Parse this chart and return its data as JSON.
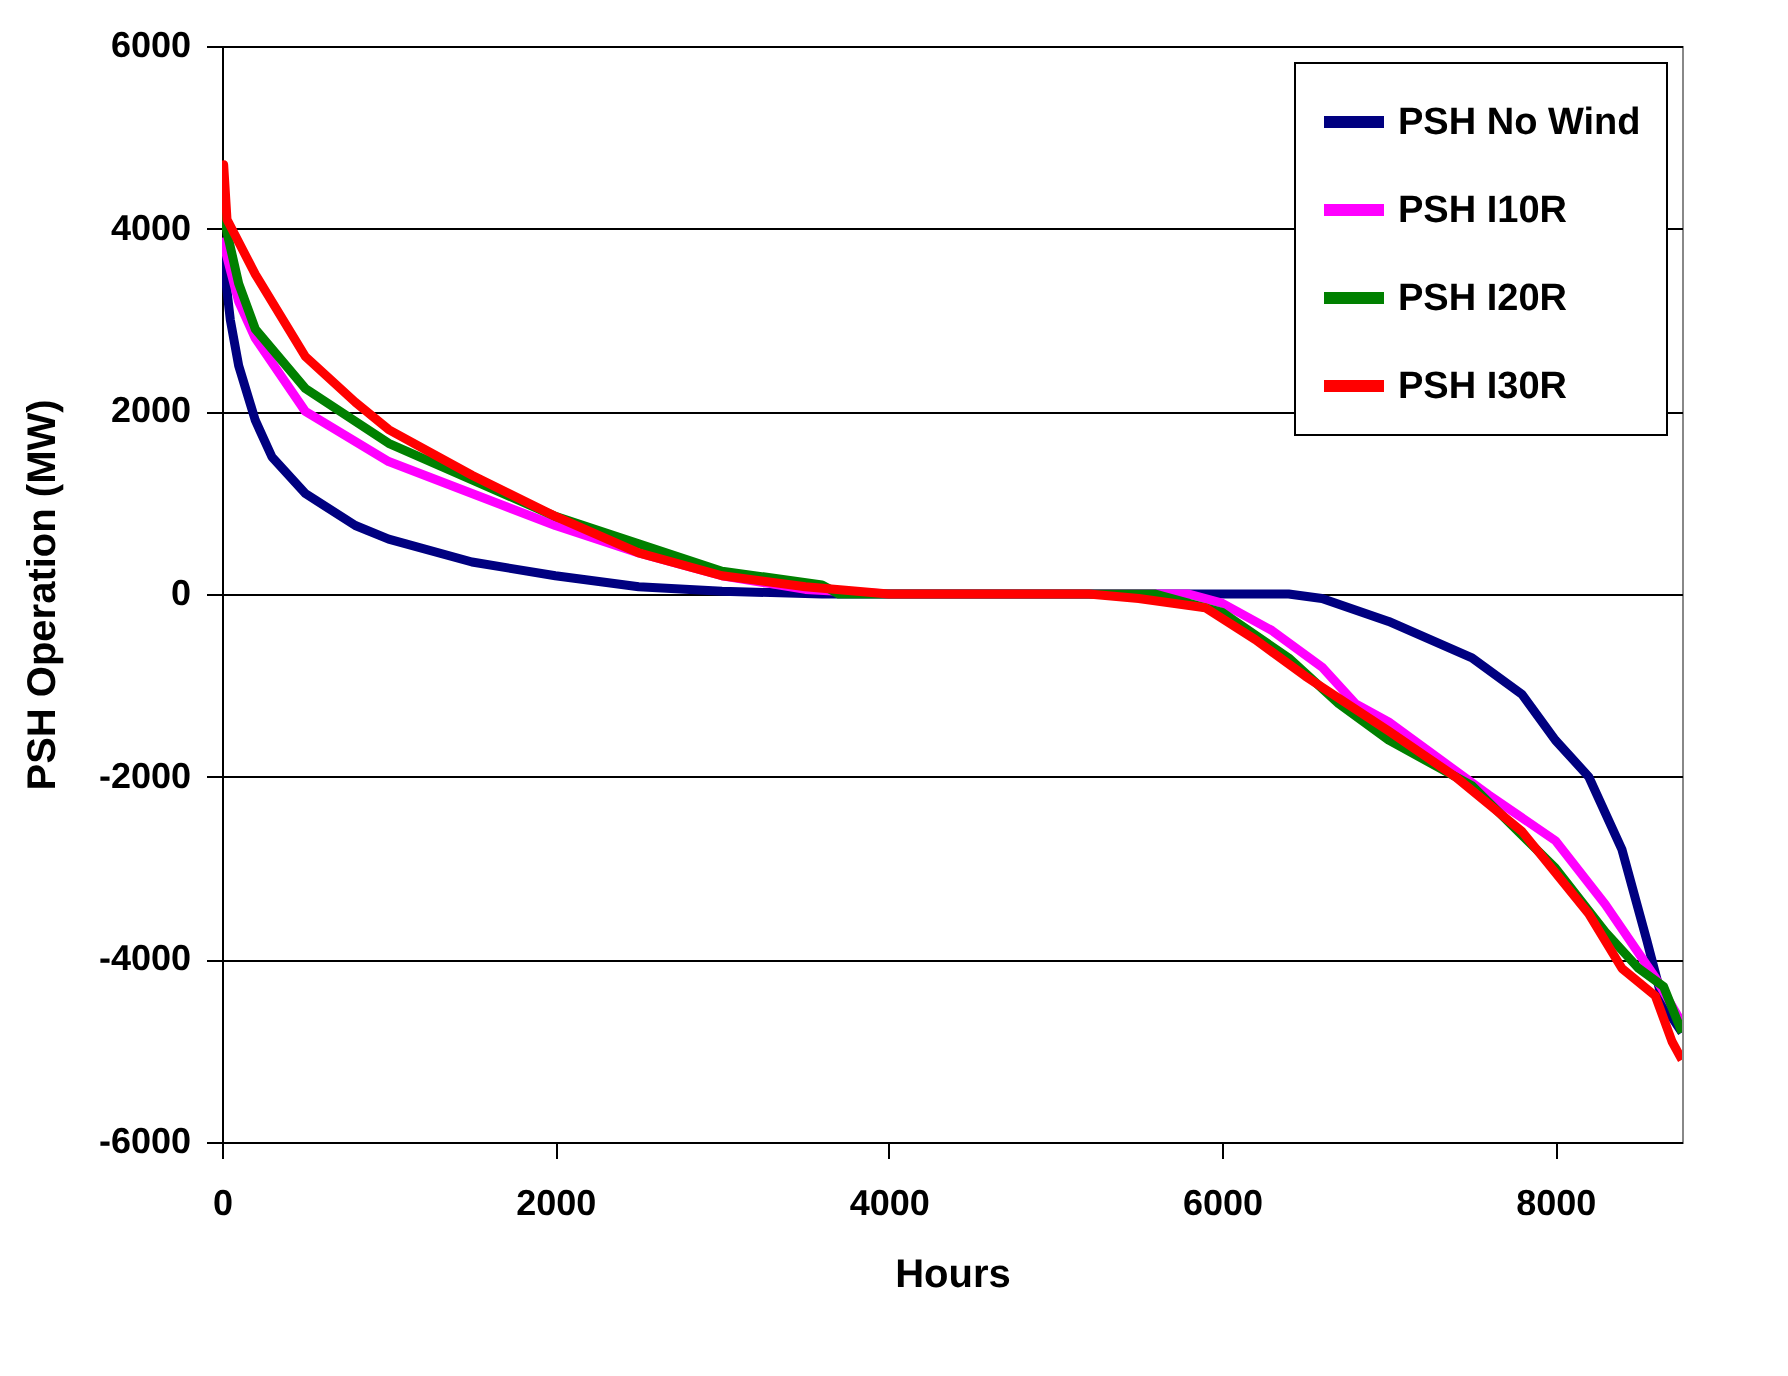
{
  "chart_data": {
    "type": "line",
    "xlabel": "Hours",
    "ylabel": "PSH Operation (MW)",
    "xlim": [
      0,
      8760
    ],
    "xticks": [
      0,
      2000,
      4000,
      6000,
      8000
    ],
    "ylim": [
      -6000,
      6000
    ],
    "yticks": [
      -6000,
      -4000,
      -2000,
      0,
      2000,
      4000,
      6000
    ],
    "grid": "y",
    "legend": "top right",
    "line_style": "solid",
    "series": [
      {
        "name": "PSH No Wind",
        "color": "#000080",
        "x": [
          0,
          50,
          100,
          200,
          300,
          500,
          800,
          1000,
          1500,
          2000,
          2500,
          3000,
          3600,
          6400,
          6600,
          7000,
          7500,
          7800,
          8000,
          8200,
          8400,
          8550,
          8650,
          8760
        ],
        "values": [
          3800,
          3000,
          2500,
          1900,
          1500,
          1100,
          750,
          600,
          350,
          200,
          80,
          30,
          0,
          0,
          -50,
          -300,
          -700,
          -1100,
          -1600,
          -2000,
          -2800,
          -3800,
          -4500,
          -4800
        ]
      },
      {
        "name": "PSH I10R",
        "color": "#ff00ff",
        "x": [
          0,
          100,
          200,
          500,
          1000,
          1500,
          2000,
          2500,
          3000,
          3500,
          4000,
          5800,
          6000,
          6300,
          6600,
          6800,
          7000,
          7300,
          7600,
          8000,
          8300,
          8600,
          8760
        ],
        "values": [
          3900,
          3200,
          2800,
          2000,
          1450,
          1100,
          750,
          450,
          200,
          50,
          0,
          0,
          -100,
          -400,
          -800,
          -1200,
          -1400,
          -1800,
          -2200,
          -2700,
          -3400,
          -4200,
          -4700
        ]
      },
      {
        "name": "PSH I20R",
        "color": "#008000",
        "x": [
          0,
          100,
          200,
          500,
          1000,
          1500,
          2000,
          2500,
          3000,
          3600,
          3700,
          5600,
          6000,
          6400,
          6700,
          7000,
          7500,
          8000,
          8300,
          8500,
          8650,
          8760
        ],
        "values": [
          4200,
          3400,
          2900,
          2250,
          1650,
          1250,
          850,
          550,
          250,
          100,
          0,
          0,
          -200,
          -700,
          -1200,
          -1600,
          -2100,
          -3000,
          -3700,
          -4100,
          -4300,
          -4800
        ]
      },
      {
        "name": "PSH I30R",
        "color": "#ff0000",
        "x": [
          0,
          10,
          30,
          200,
          500,
          800,
          1000,
          1500,
          2000,
          2500,
          3000,
          3500,
          4000,
          5200,
          5500,
          5900,
          6200,
          6500,
          7000,
          7400,
          7800,
          8200,
          8400,
          8600,
          8700,
          8760
        ],
        "values": [
          4300,
          4700,
          4100,
          3500,
          2600,
          2100,
          1800,
          1300,
          850,
          450,
          200,
          80,
          0,
          0,
          -50,
          -150,
          -500,
          -900,
          -1500,
          -2000,
          -2600,
          -3500,
          -4100,
          -4400,
          -4900,
          -5100
        ]
      }
    ]
  }
}
